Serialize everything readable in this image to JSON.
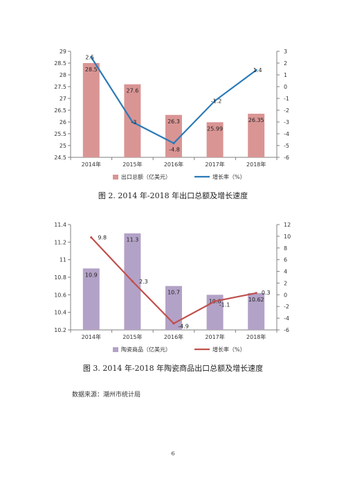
{
  "chart_data": [
    {
      "type": "bar",
      "categories": [
        "2014年",
        "2015年",
        "2016年",
        "2017年",
        "2018年"
      ],
      "series": [
        {
          "name": "出口总额（亿美元）",
          "type": "bar",
          "axis": "left",
          "values": [
            28.5,
            27.6,
            26.3,
            25.99,
            26.35
          ],
          "labels": [
            "28.5",
            "27.6",
            "26.3",
            "25.99",
            "26.35"
          ]
        },
        {
          "name": "增长率（%）",
          "type": "line",
          "axis": "right",
          "values": [
            2.5,
            -3,
            -4.8,
            -1.2,
            1.4
          ],
          "labels": [
            "2.5",
            "-3",
            "-4.8",
            "-1.2",
            "1.4"
          ]
        }
      ],
      "ylim_left": [
        24.5,
        29
      ],
      "yticks_left": [
        "29",
        "28.5",
        "28",
        "27.5",
        "27",
        "26.5",
        "26",
        "25.5",
        "25",
        "24.5"
      ],
      "ylim_right": [
        -6,
        3
      ],
      "yticks_right": [
        "3",
        "2",
        "1",
        "0",
        "-1",
        "-2",
        "-3",
        "-4",
        "-5",
        "-6"
      ],
      "legend_position": "bottom",
      "colors": {
        "bar": "#d99594",
        "line": "#2a7ab8"
      }
    },
    {
      "type": "bar",
      "categories": [
        "2014年",
        "2015年",
        "2016年",
        "2017年",
        "2018年"
      ],
      "series": [
        {
          "name": "陶瓷商品（亿美元）",
          "type": "bar",
          "axis": "left",
          "values": [
            10.9,
            11.3,
            10.7,
            10.6,
            10.62
          ],
          "labels": [
            "10.9",
            "11.3",
            "10.7",
            "10.6",
            "10.62"
          ]
        },
        {
          "name": "增长率（%）",
          "type": "line",
          "axis": "right",
          "values": [
            9.8,
            2.3,
            -4.9,
            -1.1,
            0.3
          ],
          "labels": [
            "9.8",
            "2.3",
            "-4.9",
            "-1.1",
            "0.3"
          ]
        }
      ],
      "ylim_left": [
        10.2,
        11.4
      ],
      "yticks_left": [
        "11.4",
        "11.2",
        "11",
        "10.8",
        "10.6",
        "10.4",
        "10.2"
      ],
      "ylim_right": [
        -6,
        12
      ],
      "yticks_right": [
        "12",
        "10",
        "8",
        "6",
        "4",
        "2",
        "0",
        "-2",
        "-4",
        "-6"
      ],
      "legend_position": "bottom",
      "colors": {
        "bar": "#b3a2c7",
        "line": "#c0504d"
      }
    }
  ],
  "captions": {
    "fig2": "图 2.  2014 年-2018 年出口总额及增长速度",
    "fig3": "图 3.  2014 年-2018 年陶瓷商品出口总额及增长速度"
  },
  "source": "数据来源：潮州市统计局",
  "page_number": "6"
}
